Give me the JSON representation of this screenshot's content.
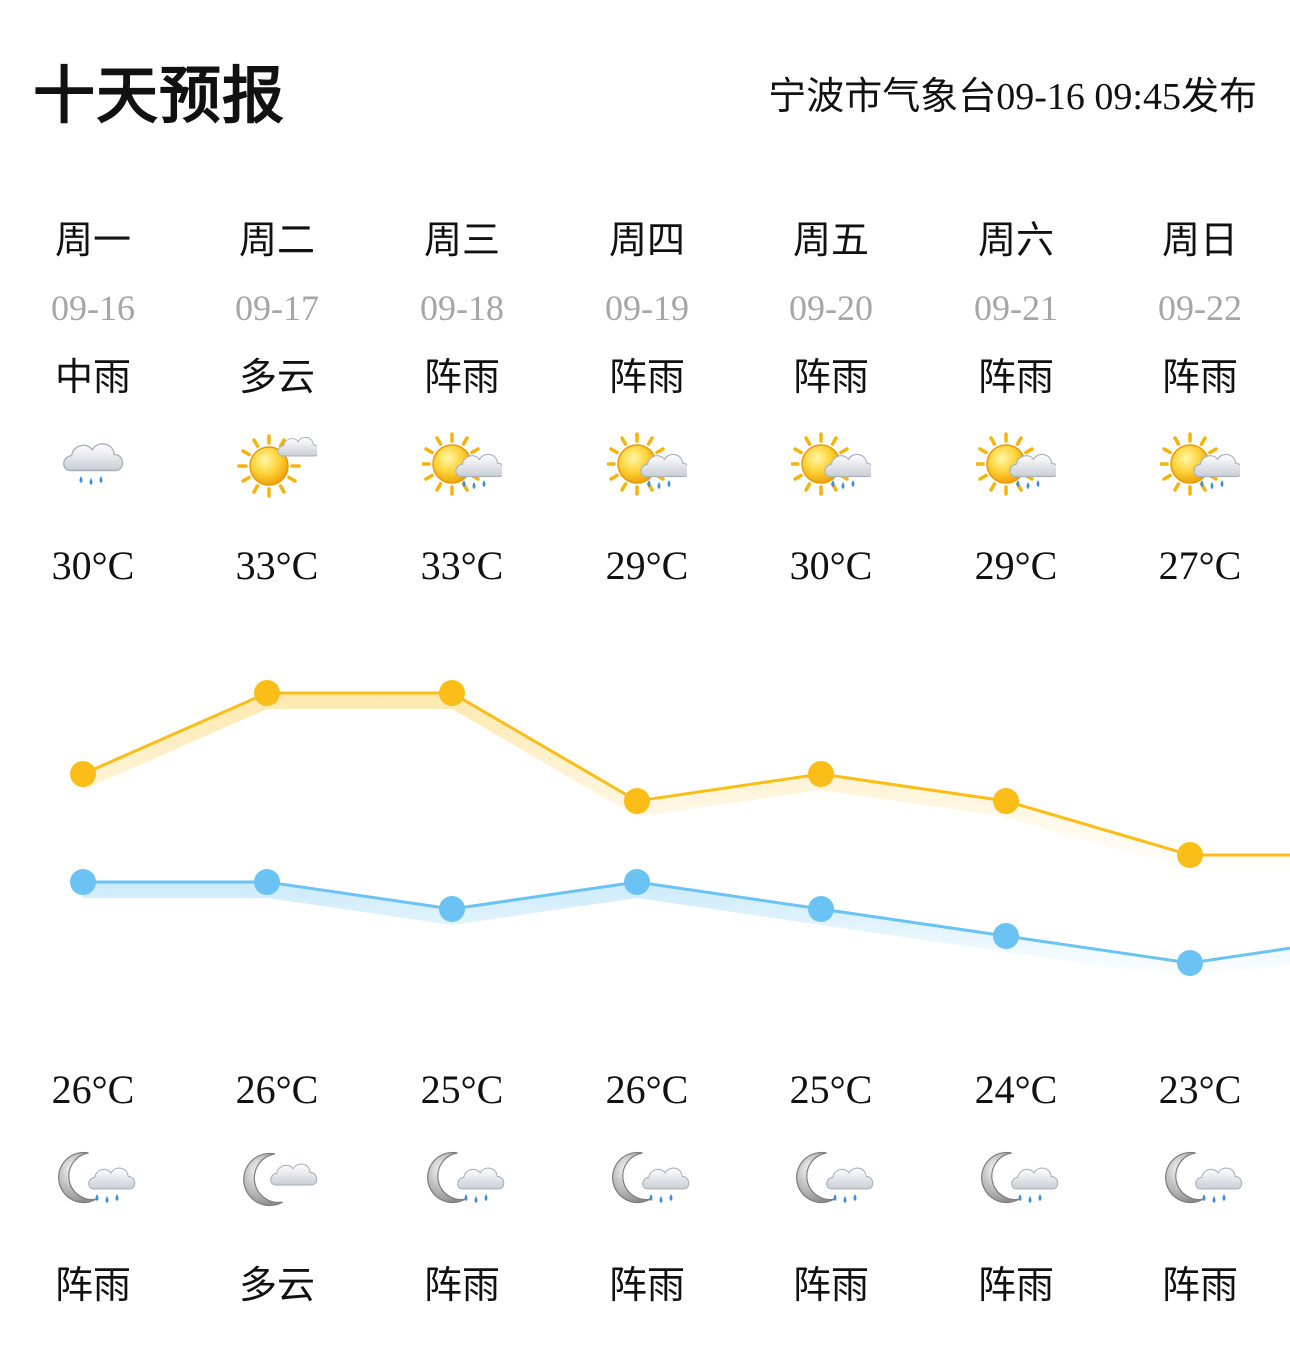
{
  "header": {
    "title": "十天预报",
    "publisher_prefix": "宁波市气象台",
    "publish_time": "09-16 09:45",
    "publisher_suffix": "发布"
  },
  "colors": {
    "high_line": "#fbbd17",
    "low_line": "#6ac3f3",
    "date_text": "#a6a6a6"
  },
  "days": [
    {
      "weekday": "周一",
      "date": "09-16",
      "day_cond": "中雨",
      "day_icon": "cloud-rain-icon",
      "high": "30°C",
      "low": "26°C",
      "night_icon": "moon-cloud-rain-icon",
      "night_cond": "阵雨"
    },
    {
      "weekday": "周二",
      "date": "09-17",
      "day_cond": "多云",
      "day_icon": "sun-cloud-icon",
      "high": "33°C",
      "low": "26°C",
      "night_icon": "moon-cloud-icon",
      "night_cond": "多云"
    },
    {
      "weekday": "周三",
      "date": "09-18",
      "day_cond": "阵雨",
      "day_icon": "sun-cloud-rain-icon",
      "high": "33°C",
      "low": "25°C",
      "night_icon": "moon-cloud-rain-icon",
      "night_cond": "阵雨"
    },
    {
      "weekday": "周四",
      "date": "09-19",
      "day_cond": "阵雨",
      "day_icon": "sun-cloud-rain-icon",
      "high": "29°C",
      "low": "26°C",
      "night_icon": "moon-cloud-rain-icon",
      "night_cond": "阵雨"
    },
    {
      "weekday": "周五",
      "date": "09-20",
      "day_cond": "阵雨",
      "day_icon": "sun-cloud-rain-icon",
      "high": "30°C",
      "low": "25°C",
      "night_icon": "moon-cloud-rain-icon",
      "night_cond": "阵雨"
    },
    {
      "weekday": "周六",
      "date": "09-21",
      "day_cond": "阵雨",
      "day_icon": "sun-cloud-rain-icon",
      "high": "29°C",
      "low": "24°C",
      "night_icon": "moon-cloud-rain-icon",
      "night_cond": "阵雨"
    },
    {
      "weekday": "周日",
      "date": "09-22",
      "day_cond": "阵雨",
      "day_icon": "sun-cloud-rain-icon",
      "high": "27°C",
      "low": "23°C",
      "night_icon": "moon-cloud-rain-icon",
      "night_cond": "阵雨"
    }
  ],
  "chart_data": {
    "type": "line",
    "categories": [
      "09-16",
      "09-17",
      "09-18",
      "09-19",
      "09-20",
      "09-21",
      "09-22"
    ],
    "series": [
      {
        "values": [
          30,
          33,
          33,
          29,
          30,
          29,
          27
        ]
      },
      {
        "values": [
          26,
          26,
          25,
          26,
          25,
          24,
          23
        ]
      }
    ],
    "ylim": [
      20,
      36
    ],
    "grid": false,
    "unit": "°C"
  }
}
